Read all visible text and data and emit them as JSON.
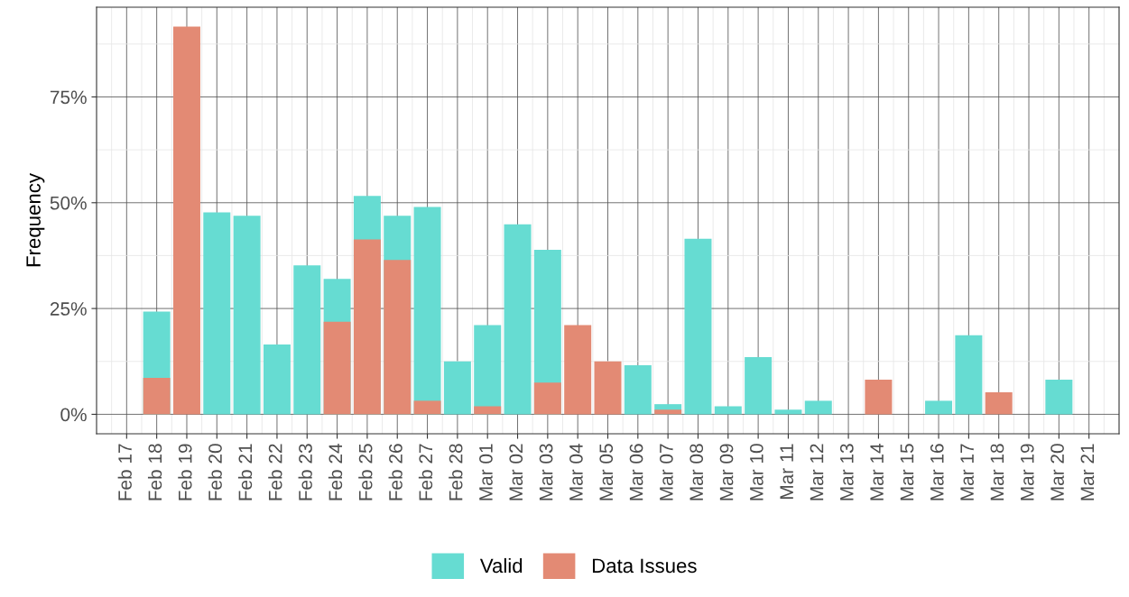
{
  "chart_data": {
    "type": "bar",
    "ylabel": "Frequency",
    "categories": [
      "Feb 17",
      "Feb 18",
      "Feb 19",
      "Feb 20",
      "Feb 21",
      "Feb 22",
      "Feb 23",
      "Feb 24",
      "Feb 25",
      "Feb 26",
      "Feb 27",
      "Feb 28",
      "Mar 01",
      "Mar 02",
      "Mar 03",
      "Mar 04",
      "Mar 05",
      "Mar 06",
      "Mar 07",
      "Mar 08",
      "Mar 09",
      "Mar 10",
      "Mar 11",
      "Mar 12",
      "Mar 13",
      "Mar 14",
      "Mar 15",
      "Mar 16",
      "Mar 17",
      "Mar 18",
      "Mar 19",
      "Mar 20",
      "Mar 21"
    ],
    "series": [
      {
        "name": "Valid",
        "color": "#66dcd2",
        "values": [
          null,
          24.3,
          null,
          47.7,
          46.9,
          16.5,
          35.2,
          32.0,
          51.6,
          46.9,
          49.0,
          12.5,
          21.1,
          44.9,
          38.9,
          null,
          null,
          11.6,
          2.4,
          41.5,
          1.9,
          13.5,
          1.1,
          3.2,
          null,
          null,
          null,
          3.2,
          18.7,
          null,
          null,
          8.2,
          null
        ]
      },
      {
        "name": "Data Issues",
        "color": "#e38a74",
        "values": [
          null,
          8.6,
          91.6,
          null,
          null,
          null,
          null,
          21.9,
          41.3,
          36.5,
          3.2,
          null,
          1.9,
          null,
          7.5,
          21.1,
          12.5,
          null,
          1.1,
          null,
          null,
          null,
          null,
          null,
          null,
          8.2,
          null,
          null,
          null,
          5.2,
          null,
          null,
          null
        ]
      }
    ],
    "ylim": [
      -4.6,
      96.2
    ],
    "yticks": [
      {
        "value": 0,
        "label": "0%"
      },
      {
        "value": 25,
        "label": "25%"
      },
      {
        "value": 50,
        "label": "50%"
      },
      {
        "value": 75,
        "label": "75%"
      }
    ],
    "grid": true,
    "legend": "bottom"
  }
}
